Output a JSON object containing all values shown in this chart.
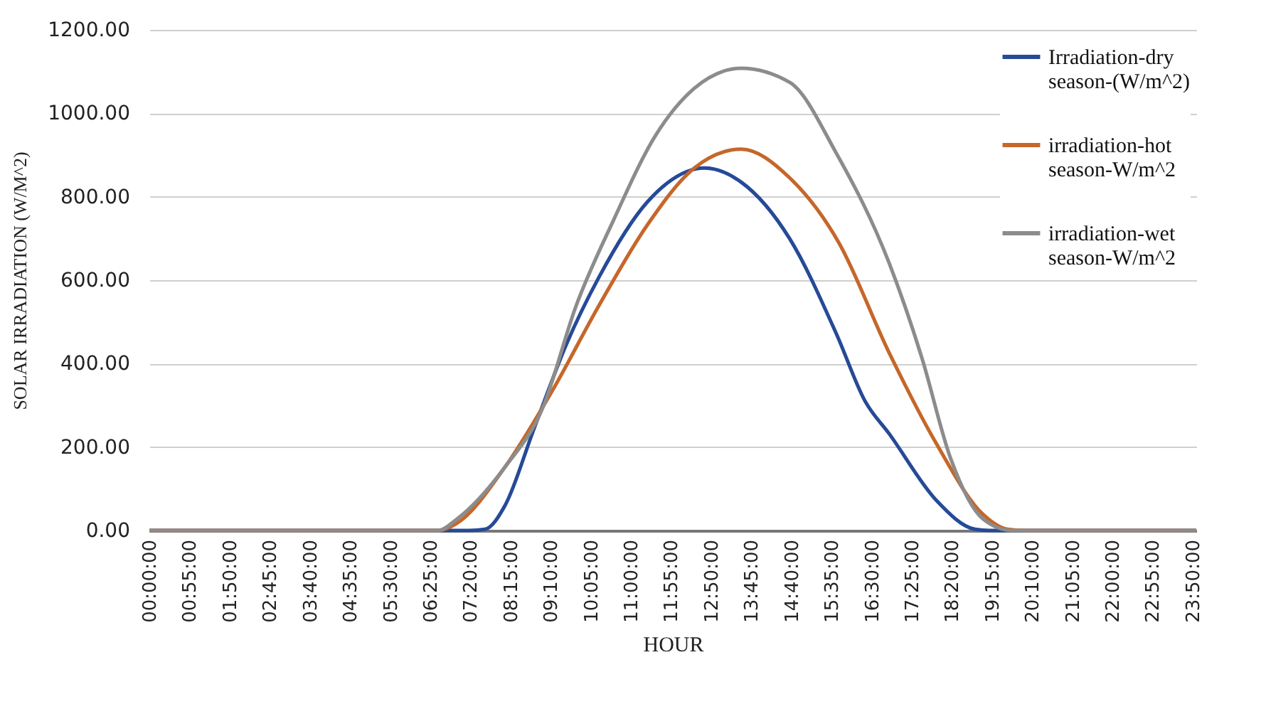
{
  "chart_data": {
    "type": "line",
    "xlabel": "HOUR",
    "ylabel": "SOLAR IRRADIATION  (W/M^2)",
    "xlim": [
      0,
      23.9167
    ],
    "xticks": [
      {
        "value": 0,
        "label": "00:00:00"
      },
      {
        "value": 0.9167,
        "label": "00:55:00"
      },
      {
        "value": 1.8333,
        "label": "01:50:00"
      },
      {
        "value": 2.75,
        "label": "02:45:00"
      },
      {
        "value": 3.6667,
        "label": "03:40:00"
      },
      {
        "value": 4.5833,
        "label": "04:35:00"
      },
      {
        "value": 5.5,
        "label": "05:30:00"
      },
      {
        "value": 6.4167,
        "label": "06:25:00"
      },
      {
        "value": 7.3333,
        "label": "07:20:00"
      },
      {
        "value": 8.25,
        "label": "08:15:00"
      },
      {
        "value": 9.1667,
        "label": "09:10:00"
      },
      {
        "value": 10.0833,
        "label": "10:05:00"
      },
      {
        "value": 11,
        "label": "11:00:00"
      },
      {
        "value": 11.9167,
        "label": "11:55:00"
      },
      {
        "value": 12.8333,
        "label": "12:50:00"
      },
      {
        "value": 13.75,
        "label": "13:45:00"
      },
      {
        "value": 14.6667,
        "label": "14:40:00"
      },
      {
        "value": 15.5833,
        "label": "15:35:00"
      },
      {
        "value": 16.5,
        "label": "16:30:00"
      },
      {
        "value": 17.4167,
        "label": "17:25:00"
      },
      {
        "value": 18.3333,
        "label": "18:20:00"
      },
      {
        "value": 19.25,
        "label": "19:15:00"
      },
      {
        "value": 20.1667,
        "label": "20:10:00"
      },
      {
        "value": 21.0833,
        "label": "21:05:00"
      },
      {
        "value": 22,
        "label": "22:00:00"
      },
      {
        "value": 22.9167,
        "label": "22:55:00"
      },
      {
        "value": 23.8333,
        "label": "23:50:00"
      }
    ],
    "ylim": [
      0,
      1200
    ],
    "yticks": [
      {
        "value": 0,
        "label": "0.00"
      },
      {
        "value": 200,
        "label": "200.00"
      },
      {
        "value": 400,
        "label": "400.00"
      },
      {
        "value": 600,
        "label": "600.00"
      },
      {
        "value": 800,
        "label": "800.00"
      },
      {
        "value": 1000,
        "label": "1000.00"
      },
      {
        "value": 1200,
        "label": "1200.00"
      }
    ],
    "grid": "y",
    "legend": "top right",
    "series": [
      {
        "name": "Irradiation-dry season-(W/m^2)",
        "color": "#264a97",
        "x": [
          0,
          6,
          7.3,
          7.67,
          8.13,
          8.78,
          9.53,
          10.27,
          11.38,
          12.68,
          13.52,
          14.63,
          15.7,
          16.35,
          16.9,
          17.98,
          18.86,
          19.2,
          23.9167
        ],
        "values": [
          0,
          0,
          0,
          3,
          61,
          242,
          447,
          607,
          788,
          869,
          835,
          699,
          470,
          310,
          232,
          72,
          3,
          0,
          0
        ]
      },
      {
        "name": "irradiation-hot season-W/m^2",
        "color": "#c5672a",
        "x": [
          0,
          6,
          6.6,
          7.02,
          8.13,
          9.2,
          10.27,
          11.38,
          12.45,
          13.52,
          14.63,
          15.75,
          16.9,
          17.98,
          19.05,
          19.6,
          20,
          23.9167
        ],
        "values": [
          0,
          0,
          0,
          17,
          153,
          334,
          539,
          733,
          869,
          914,
          845,
          690,
          426,
          208,
          38,
          3,
          0,
          0
        ]
      },
      {
        "name": "irradiation-wet season-W/m^2",
        "color": "#8c8c8c",
        "x": [
          0,
          6,
          6.6,
          7.02,
          8.13,
          8.97,
          9.75,
          10.6,
          11.57,
          12.45,
          13.52,
          14.63,
          15.7,
          16.9,
          17.65,
          18.3,
          19.05,
          19.7,
          23.9167
        ],
        "values": [
          0,
          0,
          0,
          27,
          153,
          290,
          539,
          743,
          948,
          1060,
          1108,
          1074,
          903,
          641,
          413,
          174,
          27,
          0,
          0
        ]
      }
    ]
  }
}
